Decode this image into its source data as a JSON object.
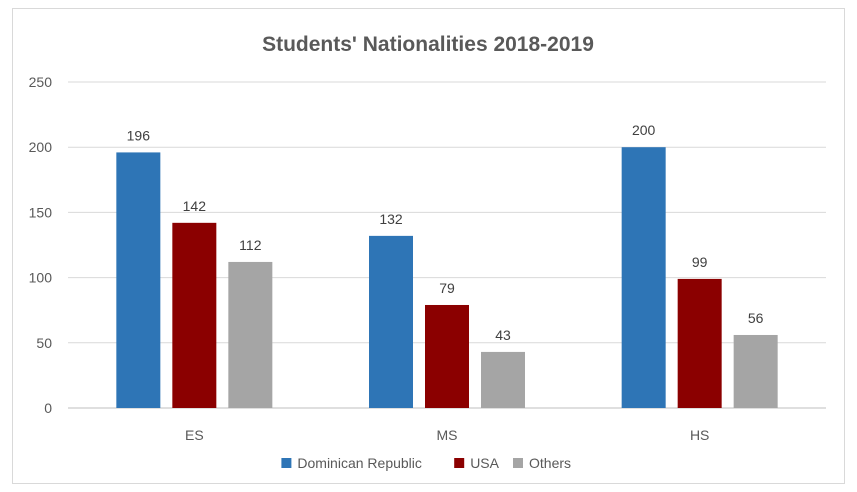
{
  "chart_data": {
    "type": "bar",
    "title": "Students' Nationalities 2018-2019",
    "xlabel": "",
    "ylabel": "",
    "categories": [
      "ES",
      "MS",
      "HS"
    ],
    "series": [
      {
        "name": "Dominican Republic",
        "values": [
          196,
          132,
          200
        ],
        "color": "#2e75b6"
      },
      {
        "name": "USA",
        "values": [
          142,
          79,
          99
        ],
        "color": "#8b0000"
      },
      {
        "name": "Others",
        "values": [
          112,
          43,
          56
        ],
        "color": "#a5a5a5"
      }
    ],
    "ylim": [
      0,
      250
    ],
    "yticks": [
      0,
      50,
      100,
      150,
      200,
      250
    ],
    "grid": true,
    "data_labels": true,
    "legend_position": "bottom"
  }
}
